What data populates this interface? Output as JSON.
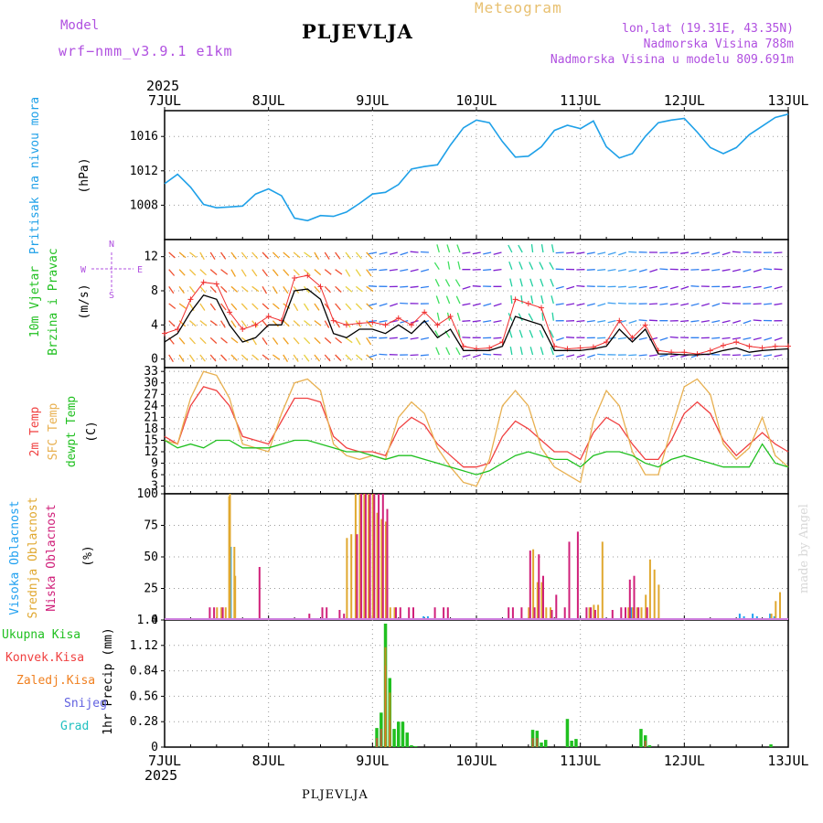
{
  "header": {
    "model_label": "Model",
    "model_name": "wrf−nmm_v3.9.1 e1km",
    "station": "PLJEVLJA",
    "product": "Meteogram",
    "lonlat": "lon,lat (19.31E, 43.35N)",
    "elevation": "Nadmorska Visina 788m",
    "model_elevation": "Nadmorska Visina u modelu 809.691m",
    "year_top": "2025",
    "year_bottom": "2025",
    "footer": "PLJEVLJA",
    "credit": "made by Angel"
  },
  "colors": {
    "pressure": "#1ea0e8",
    "wind_speed": "#000000",
    "gust": "#f03030",
    "temp2m": "#f04040",
    "sfc_temp": "#e8b050",
    "dewpoint": "#20c020",
    "cloud_high": "#20a0f0",
    "cloud_mid": "#e0a830",
    "cloud_low": "#d0207a",
    "precip_total": "#20c020",
    "precip_conv": "#f04040",
    "precip_strat": "#f08020",
    "snow": "#6060e0",
    "graupel": "#20c0c0",
    "label_purple": "#b050e0"
  },
  "x_axis": {
    "ticks": [
      "7JUL",
      "8JUL",
      "9JUL",
      "10JUL",
      "11JUL",
      "12JUL",
      "13JUL"
    ],
    "range_hours": [
      0,
      144
    ]
  },
  "legend_precip": {
    "total": "Ukupna Kisa",
    "convective": "Konvek.Kisa",
    "stratiform": "Zaledj.Kisa",
    "snow": "Snijeg",
    "graupel": "Grad"
  },
  "chart_data": [
    {
      "type": "line",
      "panel": "pressure",
      "ylabel": [
        "Pritisak na nivou mora",
        "(hPa)"
      ],
      "yticks": [
        1008,
        1012,
        1016
      ],
      "ylim": [
        1004,
        1019
      ],
      "grid": true,
      "x_hours": [
        0,
        3,
        6,
        9,
        12,
        15,
        18,
        21,
        24,
        27,
        30,
        33,
        36,
        39,
        42,
        45,
        48,
        51,
        54,
        57,
        60,
        63,
        66,
        69,
        72,
        75,
        78,
        81,
        84,
        87,
        90,
        93,
        96,
        99,
        102,
        105,
        108,
        111,
        114,
        117,
        120,
        123,
        126,
        129,
        132,
        135,
        138,
        141,
        144
      ],
      "series": [
        {
          "values": [
            1010.5,
            1011.6,
            1010.1,
            1008.1,
            1007.7,
            1007.8,
            1007.9,
            1009.3,
            1009.9,
            1009.1,
            1006.5,
            1006.2,
            1006.8,
            1006.7,
            1007.2,
            1008.2,
            1009.3,
            1009.5,
            1010.4,
            1012.2,
            1012.5,
            1012.7,
            1015.0,
            1017.0,
            1017.9,
            1017.6,
            1015.4,
            1013.6,
            1013.7,
            1014.8,
            1016.7,
            1017.3,
            1016.9,
            1017.8,
            1014.8,
            1013.5,
            1014.0,
            1016.0,
            1017.6,
            1017.9,
            1018.1,
            1016.5,
            1014.7,
            1014.0,
            1014.7,
            1016.2,
            1017.2,
            1018.2,
            1018.6
          ]
        }
      ]
    },
    {
      "type": "line",
      "panel": "wind",
      "ylabel": [
        "10m Vjetar",
        "Brzina i Pravac",
        "(m/s)"
      ],
      "direction_key": [
        "N",
        "W",
        "E",
        "S"
      ],
      "yticks": [
        0,
        4,
        8,
        12
      ],
      "ylim": [
        -1,
        14
      ],
      "grid": true,
      "x_hours": [
        0,
        3,
        6,
        9,
        12,
        15,
        18,
        21,
        24,
        27,
        30,
        33,
        36,
        39,
        42,
        45,
        48,
        51,
        54,
        57,
        60,
        63,
        66,
        69,
        72,
        75,
        78,
        81,
        84,
        87,
        90,
        93,
        96,
        99,
        102,
        105,
        108,
        111,
        114,
        117,
        120,
        123,
        126,
        129,
        132,
        135,
        138,
        141,
        144
      ],
      "series": [
        {
          "name": "speed",
          "values": [
            2.0,
            3.0,
            5.5,
            7.5,
            7.0,
            4.0,
            2.0,
            2.5,
            4.0,
            4.0,
            8.0,
            8.2,
            7.0,
            3.0,
            2.5,
            3.5,
            3.5,
            3.0,
            4.0,
            3.0,
            4.5,
            2.5,
            3.5,
            1.0,
            1.0,
            1.0,
            1.5,
            5.0,
            4.5,
            4.0,
            1.0,
            1.0,
            1.0,
            1.2,
            1.5,
            3.5,
            2.0,
            3.5,
            0.6,
            0.6,
            0.5,
            0.5,
            0.6,
            1.0,
            1.3,
            0.8,
            1.0,
            1.1,
            1.2
          ]
        },
        {
          "name": "gust",
          "values": [
            3.0,
            3.5,
            7.0,
            9.0,
            8.8,
            5.5,
            3.5,
            4.0,
            5.0,
            4.5,
            9.5,
            9.8,
            8.5,
            4.5,
            4.0,
            4.2,
            4.3,
            4.0,
            4.8,
            4.0,
            5.5,
            4.0,
            5.0,
            1.5,
            1.2,
            1.3,
            2.0,
            7.0,
            6.5,
            6.0,
            1.5,
            1.2,
            1.3,
            1.4,
            2.0,
            4.5,
            2.5,
            4.0,
            1.0,
            0.8,
            0.8,
            0.6,
            1.0,
            1.6,
            2.0,
            1.5,
            1.3,
            1.5,
            1.5
          ]
        }
      ]
    },
    {
      "type": "line",
      "panel": "temperature",
      "ylabel": [
        "2m Temp",
        "SFC Temp",
        "dewpt Temp",
        "(C)"
      ],
      "yticks": [
        3,
        6,
        9,
        12,
        15,
        18,
        21,
        24,
        27,
        30,
        33
      ],
      "ylim": [
        1,
        34
      ],
      "grid": true,
      "x_hours": [
        0,
        3,
        6,
        9,
        12,
        15,
        18,
        21,
        24,
        27,
        30,
        33,
        36,
        39,
        42,
        45,
        48,
        51,
        54,
        57,
        60,
        63,
        66,
        69,
        72,
        75,
        78,
        81,
        84,
        87,
        90,
        93,
        96,
        99,
        102,
        105,
        108,
        111,
        114,
        117,
        120,
        123,
        126,
        129,
        132,
        135,
        138,
        141,
        144
      ],
      "series": [
        {
          "name": "2m Temp",
          "values": [
            16,
            14,
            24,
            29,
            28,
            24,
            16,
            15,
            14,
            20,
            26,
            26,
            25,
            16,
            13,
            12,
            12,
            11,
            18,
            21,
            19,
            14,
            11,
            8,
            8,
            9,
            16,
            20,
            18,
            15,
            12,
            12,
            10,
            17,
            21,
            19,
            14,
            10,
            10,
            15,
            22,
            25,
            22,
            15,
            11,
            14,
            17,
            14,
            12
          ]
        },
        {
          "name": "SFC Temp",
          "values": [
            15,
            14,
            26,
            33,
            32,
            26,
            14,
            13,
            12,
            22,
            30,
            31,
            28,
            14,
            11,
            10,
            11,
            10,
            21,
            25,
            22,
            13,
            8,
            4,
            3,
            10,
            24,
            28,
            24,
            13,
            8,
            6,
            4,
            20,
            28,
            24,
            12,
            6,
            6,
            18,
            29,
            31,
            27,
            14,
            10,
            13,
            21,
            11,
            8
          ]
        },
        {
          "name": "dewpt Temp",
          "values": [
            15,
            13,
            14,
            13,
            15,
            15,
            13,
            13,
            13,
            14,
            15,
            15,
            14,
            13,
            12,
            12,
            11,
            10,
            11,
            11,
            10,
            9,
            8,
            7,
            6,
            7,
            9,
            11,
            12,
            11,
            10,
            10,
            8,
            11,
            12,
            12,
            11,
            9,
            8,
            10,
            11,
            10,
            9,
            8,
            8,
            8,
            14,
            9,
            8
          ]
        }
      ]
    },
    {
      "type": "bar",
      "panel": "clouds",
      "ylabel": [
        "Visoka Oblacnost",
        "Srednja Oblacnost",
        "Niska Oblacnost",
        "(%)"
      ],
      "yticks": [
        0,
        25,
        50,
        75,
        100
      ],
      "ylim": [
        0,
        100
      ],
      "grid": true,
      "series": [
        {
          "name": "Visoka Oblacnost",
          "hours": [
            15.5,
            60,
            61,
            108,
            133,
            134,
            136,
            137,
            140,
            141
          ],
          "values": [
            58,
            3,
            3,
            10,
            5,
            3,
            5,
            3,
            5,
            3
          ]
        },
        {
          "name": "Srednja Oblacnost",
          "hours": [
            12,
            13,
            14,
            14.8,
            15,
            16,
            16.2,
            42,
            43,
            44,
            45,
            46,
            47,
            48,
            49,
            50,
            51,
            52,
            53,
            84,
            85,
            86,
            87,
            88,
            89,
            98,
            99,
            100,
            101,
            107,
            108,
            109,
            110,
            111,
            112,
            113,
            114,
            140,
            141,
            142
          ],
          "values": [
            10,
            10,
            10,
            98,
            100,
            58,
            35,
            65,
            68,
            100,
            100,
            100,
            100,
            100,
            85,
            80,
            78,
            10,
            10,
            10,
            56,
            30,
            30,
            10,
            10,
            10,
            12,
            12,
            62,
            10,
            10,
            10,
            10,
            20,
            48,
            40,
            28,
            5,
            15,
            22
          ]
        },
        {
          "name": "Niska Oblacnost",
          "hours": [
            10,
            11,
            13,
            21.5,
            33,
            36,
            37,
            40,
            41,
            44,
            45,
            46,
            47,
            48,
            49,
            50,
            51,
            53,
            54,
            56,
            57,
            62,
            64,
            65,
            79,
            80,
            82,
            84,
            85,
            86,
            87,
            89,
            90,
            92,
            93,
            95,
            97,
            98,
            99,
            103,
            105,
            106,
            107,
            108,
            109,
            111
          ],
          "values": [
            10,
            10,
            10,
            42,
            5,
            10,
            10,
            8,
            5,
            68,
            100,
            100,
            100,
            100,
            100,
            100,
            88,
            10,
            10,
            10,
            10,
            10,
            10,
            10,
            10,
            10,
            10,
            55,
            10,
            52,
            35,
            8,
            20,
            10,
            62,
            70,
            10,
            10,
            8,
            8,
            10,
            10,
            32,
            35,
            10,
            10
          ]
        }
      ]
    },
    {
      "type": "bar",
      "panel": "precip",
      "ylabel": [
        "1hr Precip (mm)"
      ],
      "yticks": [
        0,
        0.28,
        0.56,
        0.84,
        1.12,
        1.4
      ],
      "ylim": [
        0,
        1.4
      ],
      "grid": true,
      "series": [
        {
          "name": "Ukupna Kisa",
          "hours": [
            49,
            50,
            51,
            52,
            53,
            54,
            55,
            56,
            57,
            58,
            85,
            86,
            87,
            88,
            93,
            94,
            95,
            110,
            111,
            112,
            140
          ],
          "values": [
            0.21,
            0.38,
            1.36,
            0.76,
            0.2,
            0.28,
            0.28,
            0.16,
            0.02,
            0.01,
            0.19,
            0.18,
            0.05,
            0.08,
            0.31,
            0.07,
            0.09,
            0.2,
            0.13,
            0.02,
            0.03
          ]
        },
        {
          "name": "Konvek.Kisa",
          "hours": [
            49,
            50,
            51,
            52,
            85,
            86,
            111
          ],
          "values": [
            0.1,
            0.2,
            0.9,
            0.3,
            0.1,
            0.1,
            0.07
          ]
        },
        {
          "name": "Zaledj.Kisa",
          "hours": [
            51,
            52
          ],
          "values": [
            1.1,
            0.6
          ]
        }
      ]
    }
  ]
}
